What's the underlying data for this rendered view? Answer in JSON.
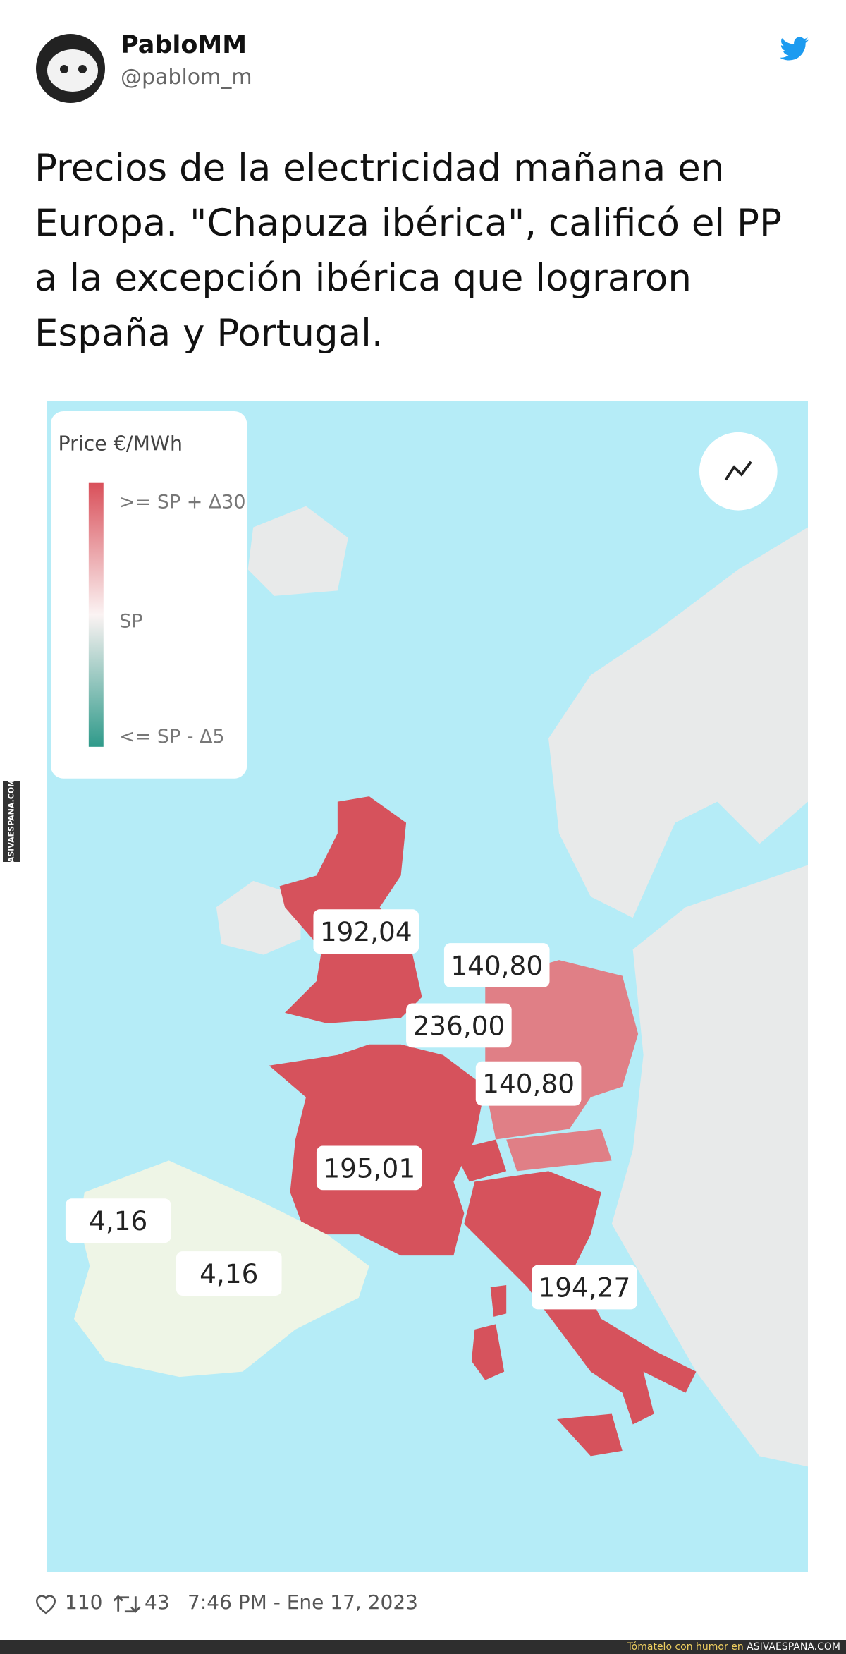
{
  "header": {
    "name": "PabloMM",
    "handle": "@pablom_m"
  },
  "tweet": {
    "lines": [
      "Precios de la electricidad mañana en",
      "Europa. \"Chapuza ibérica\", calificó el PP",
      "a la excepción ibérica que lograron",
      "España y Portugal."
    ]
  },
  "map": {
    "legend": {
      "title": "Price €/MWh",
      "labels": [
        ">= SP + Δ30",
        "SP",
        "<= SP - Δ5"
      ]
    },
    "price_labels": [
      "192,04",
      "140,80",
      "236,00",
      "140,80",
      "195,01",
      "4,16",
      "4,16",
      "194,27"
    ]
  },
  "footer": {
    "likes": "110",
    "retweets": "43",
    "time": "7:46 PM - Ene 17, 2023"
  },
  "watermark": {
    "side": "ASIVAESPANA.COM",
    "bar_text": "Tómatelo con humor en",
    "bar_site": "ASIVAESPANA.COM"
  }
}
